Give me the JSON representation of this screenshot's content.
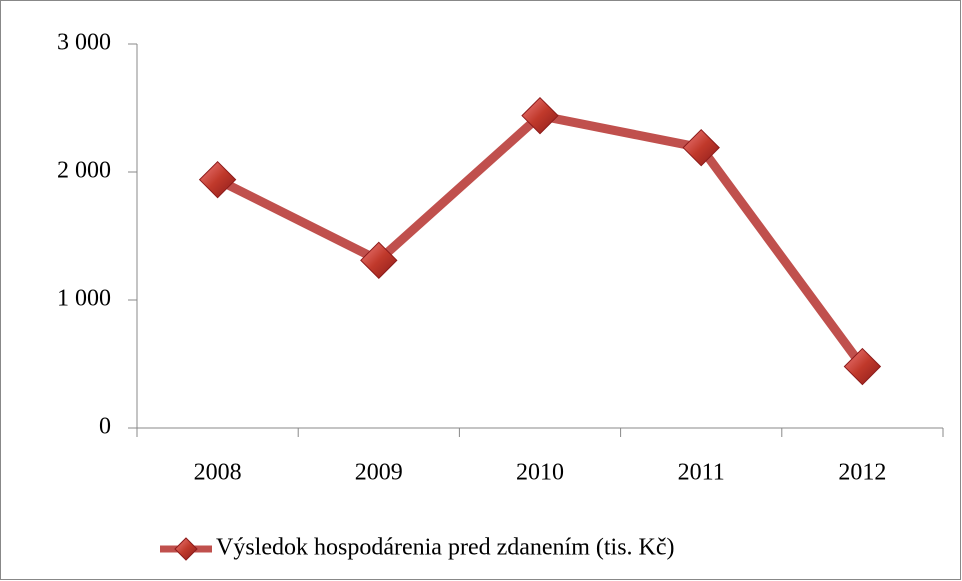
{
  "chart_data": {
    "type": "line",
    "categories": [
      "2008",
      "2009",
      "2010",
      "2011",
      "2012"
    ],
    "series": [
      {
        "name": "Výsledok hospodárenia pred zdanením (tis. Kč)",
        "color": "#c0504d",
        "values": [
          1940,
          1310,
          2440,
          2190,
          480
        ]
      }
    ],
    "ylim": [
      0,
      3000
    ],
    "yticks": [
      0,
      {
        "value": 1000,
        "label": "1 000"
      },
      {
        "value": 2000,
        "label": "2 000"
      },
      {
        "value": 3000,
        "label": "3 000"
      }
    ],
    "grid": false,
    "legend": "bottom"
  }
}
